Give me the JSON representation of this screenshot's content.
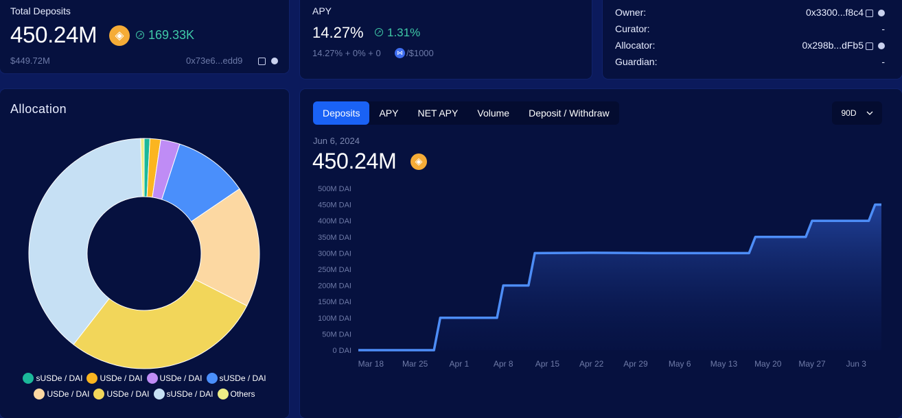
{
  "deposits": {
    "title": "Total Deposits",
    "value": "450.24M",
    "change": "169.33K",
    "usd": "$449.72M",
    "address": "0x73e6...edd9"
  },
  "apy": {
    "title": "APY",
    "value": "14.27%",
    "change": "1.31%",
    "breakdown_prefix": "14.27% + 0% + 0",
    "breakdown_suffix": "/$1000"
  },
  "roles": [
    {
      "label": "Owner:",
      "value": "0x3300...f8c4",
      "has_icons": true
    },
    {
      "label": "Curator:",
      "value": "-",
      "has_icons": false
    },
    {
      "label": "Allocator:",
      "value": "0x298b...dFb5",
      "has_icons": true
    },
    {
      "label": "Guardian:",
      "value": "-",
      "has_icons": false
    }
  ],
  "allocation": {
    "title": "Allocation",
    "slices": [
      {
        "label": "sUSDe / DAI",
        "color": "#1bb89a",
        "percent": 0.8
      },
      {
        "label": "USDe / DAI",
        "color": "#fbb520",
        "percent": 1.5
      },
      {
        "label": "USDe / DAI",
        "color": "#bf8cf5",
        "percent": 2.7
      },
      {
        "label": "sUSDe / DAI",
        "color": "#4a8ffb",
        "percent": 10.5
      },
      {
        "label": "USDe / DAI",
        "color": "#fcd8a2",
        "percent": 17.0
      },
      {
        "label": "USDe / DAI",
        "color": "#f2d65a",
        "percent": 28.0
      },
      {
        "label": "sUSDe / DAI",
        "color": "#c6e0f4",
        "percent": 39.0
      },
      {
        "label": "Others",
        "color": "#eced86",
        "percent": 0.5
      }
    ]
  },
  "chart_panel": {
    "tabs": [
      "Deposits",
      "APY",
      "NET APY",
      "Volume",
      "Deposit / Withdraw"
    ],
    "active_tab": "Deposits",
    "range": "90D",
    "date": "Jun 6, 2024",
    "value": "450.24M"
  },
  "chart_data": {
    "type": "area",
    "series": [
      {
        "name": "",
        "points": [
          [
            "Mar 16",
            0
          ],
          [
            "Mar 25",
            0
          ],
          [
            "Mar 28",
            0
          ],
          [
            "Mar 29",
            100
          ],
          [
            "Apr 7",
            100
          ],
          [
            "Apr 8",
            200
          ],
          [
            "Apr 12",
            200
          ],
          [
            "Apr 13",
            300
          ],
          [
            "Apr 22",
            301
          ],
          [
            "May 2",
            300
          ],
          [
            "May 12",
            300
          ],
          [
            "May 17",
            300
          ],
          [
            "May 18",
            350
          ],
          [
            "May 26",
            350
          ],
          [
            "May 27",
            400
          ],
          [
            "Jun 5",
            400
          ],
          [
            "Jun 6",
            450
          ],
          [
            "Jun 7",
            450
          ]
        ]
      }
    ],
    "y_ticks": [
      "0 DAI",
      "50M DAI",
      "100M DAI",
      "150M DAI",
      "200M DAI",
      "250M DAI",
      "300M DAI",
      "350M DAI",
      "400M DAI",
      "450M DAI",
      "500M DAI"
    ],
    "x_ticks": [
      "Mar 18",
      "Mar 25",
      "Apr 1",
      "Apr 8",
      "Apr 15",
      "Apr 22",
      "Apr 29",
      "May 6",
      "May 13",
      "May 20",
      "May 27",
      "Jun 3"
    ],
    "ylim": [
      0,
      500
    ],
    "unit": "M DAI",
    "line_color": "#4d8df7",
    "grid": false
  }
}
